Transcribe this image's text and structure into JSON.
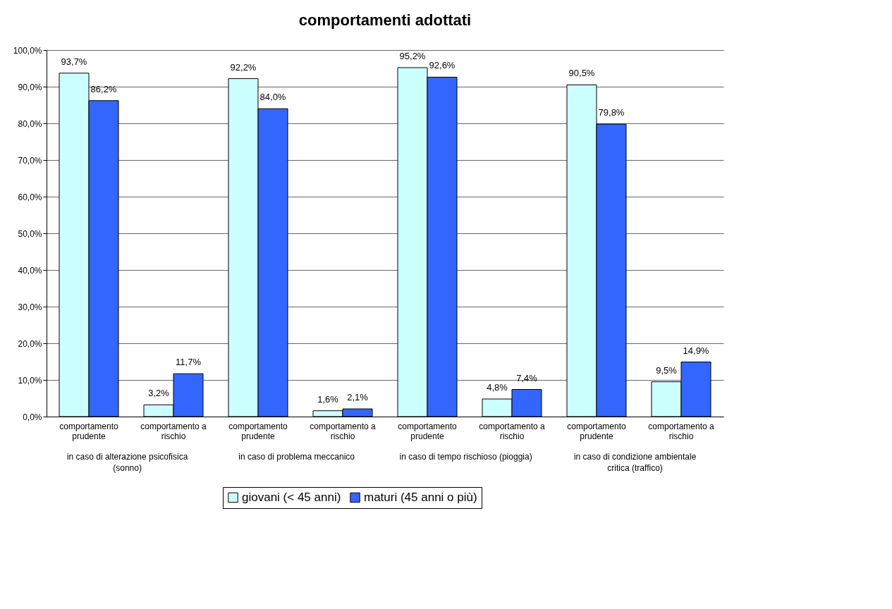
{
  "chart_data": {
    "type": "bar",
    "title": "comportamenti adottati",
    "categories": [
      "comportamento prudente",
      "comportamento a rischio",
      "comportamento prudente",
      "comportamento a rischio",
      "comportamento prudente",
      "comportamento a rischio",
      "comportamento prudente",
      "comportamento a rischio"
    ],
    "annotations": [
      "in caso di alterazione psicofisica (sonno)",
      "in caso di problema meccanico",
      "in caso di tempo rischioso (pioggia)",
      "in caso di condizione ambientale critica (traffico)"
    ],
    "series": [
      {
        "name": "giovani (< 45 anni)",
        "color": "#ccffff",
        "values": [
          93.7,
          3.2,
          92.2,
          1.6,
          95.2,
          4.8,
          90.5,
          9.5
        ],
        "value_labels": [
          "93,7%",
          "3,2%",
          "92,2%",
          "1,6%",
          "95,2%",
          "4,8%",
          "90,5%",
          "9,5%"
        ]
      },
      {
        "name": "maturi (45 anni o più)",
        "color": "#3366ff",
        "values": [
          86.2,
          11.7,
          84.0,
          2.1,
          92.6,
          7.4,
          79.8,
          14.9
        ],
        "value_labels": [
          "86,2%",
          "11,7%",
          "84,0%",
          "2,1%",
          "92,6%",
          "7,4%",
          "79,8%",
          "14,9%"
        ]
      }
    ],
    "ylim": [
      0,
      100
    ],
    "yticks": [
      {
        "value": 0,
        "label": "0,0%"
      },
      {
        "value": 10,
        "label": "10,0%"
      },
      {
        "value": 20,
        "label": "20,0%"
      },
      {
        "value": 30,
        "label": "30,0%"
      },
      {
        "value": 40,
        "label": "40,0%"
      },
      {
        "value": 50,
        "label": "50,0%"
      },
      {
        "value": 60,
        "label": "60,0%"
      },
      {
        "value": 70,
        "label": "70,0%"
      },
      {
        "value": 80,
        "label": "80,0%"
      },
      {
        "value": 90,
        "label": "90,0%"
      },
      {
        "value": 100,
        "label": "100,0%"
      }
    ],
    "grid": "y",
    "legend": "bottom"
  }
}
